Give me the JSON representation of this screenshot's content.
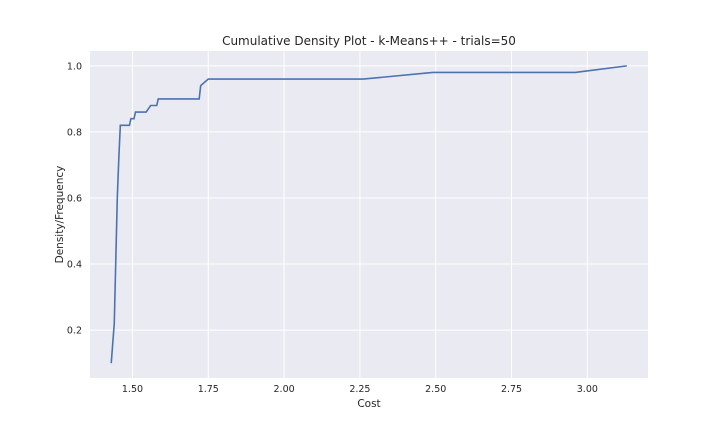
{
  "chart_data": {
    "type": "line",
    "title": "Cumulative Density Plot - k-Means++ - trials=50",
    "xlabel": "Cost",
    "ylabel": "Density/Frequency",
    "xlim": [
      1.36,
      3.2
    ],
    "ylim": [
      0.055,
      1.045
    ],
    "xticks": [
      1.5,
      1.75,
      2.0,
      2.25,
      2.5,
      2.75,
      3.0
    ],
    "xtick_labels": [
      "1.50",
      "1.75",
      "2.00",
      "2.25",
      "2.50",
      "2.75",
      "3.00"
    ],
    "yticks": [
      0.2,
      0.4,
      0.6,
      0.8,
      1.0
    ],
    "ytick_labels": [
      "0.2",
      "0.4",
      "0.6",
      "0.8",
      "1.0"
    ],
    "grid": true,
    "background_color": "#eaeaf2",
    "series": [
      {
        "color": "#4c72b0",
        "x": [
          1.43,
          1.44,
          1.45,
          1.455,
          1.46,
          1.49,
          1.495,
          1.505,
          1.51,
          1.545,
          1.56,
          1.58,
          1.585,
          1.72,
          1.725,
          1.75,
          2.26,
          2.49,
          2.96,
          3.13
        ],
        "y": [
          0.1,
          0.22,
          0.6,
          0.72,
          0.82,
          0.82,
          0.84,
          0.84,
          0.86,
          0.86,
          0.88,
          0.88,
          0.9,
          0.9,
          0.94,
          0.96,
          0.96,
          0.98,
          0.98,
          1.0
        ]
      }
    ]
  }
}
